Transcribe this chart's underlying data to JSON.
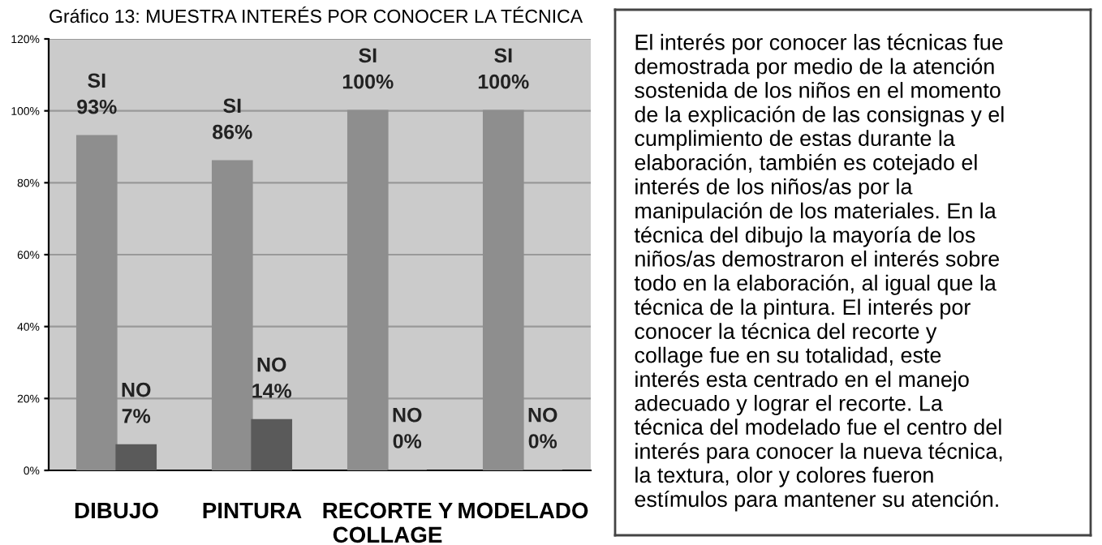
{
  "chart_data": [
    {
      "type": "bar",
      "title": "Gráfico 13: MUESTRA INTERÉS POR CONOCER LA TÉCNICA",
      "categories": [
        "DIBUJO",
        "PINTURA",
        "RECORTE Y\nCOLLAGE",
        "MODELADO"
      ],
      "series": [
        {
          "name": "SI",
          "color": "#8e8e8e",
          "values": [
            93,
            86,
            100,
            100
          ],
          "value_labels": [
            "93%",
            "86%",
            "100%",
            "100%"
          ]
        },
        {
          "name": "NO",
          "color": "#5a5a5a",
          "values": [
            7,
            14,
            0,
            0
          ],
          "value_labels": [
            "7%",
            "14%",
            "0%",
            "0%"
          ]
        }
      ],
      "ylim": [
        0,
        120
      ],
      "yticks": [
        {
          "value": 0,
          "label": "0%"
        },
        {
          "value": 20,
          "label": "20%"
        },
        {
          "value": 40,
          "label": "40%"
        },
        {
          "value": 60,
          "label": "60%"
        },
        {
          "value": 80,
          "label": "80%"
        },
        {
          "value": 100,
          "label": "100%"
        },
        {
          "value": 120,
          "label": "120%"
        }
      ],
      "grid": "y",
      "legend": false
    },
    {
      "type": "other",
      "annotations": [
        "El interés por conocer las técnicas fue\ndemostrada por medio de la atención\nsostenida de los niños en el momento\nde la explicación de las consignas y el\ncumplimiento de estas durante la\nelaboración, también es cotejado el\ninterés de los niños/as por la\nmanipulación de los materiales. En la\ntécnica del dibujo la mayoría de los\nniños/as demostraron el interés sobre\ntodo en la elaboración, al igual que la\ntécnica de la pintura. El interés por\nconocer la técnica del recorte y\ncollage fue en su totalidad, este\ninterés esta centrado en el manejo\nadecuado y lograr el recorte. La\ntécnica del modelado fue el centro del\ninterés para conocer la nueva técnica,\nla textura, olor y colores fueron\nestímulos para mantener su atención."
      ]
    }
  ]
}
